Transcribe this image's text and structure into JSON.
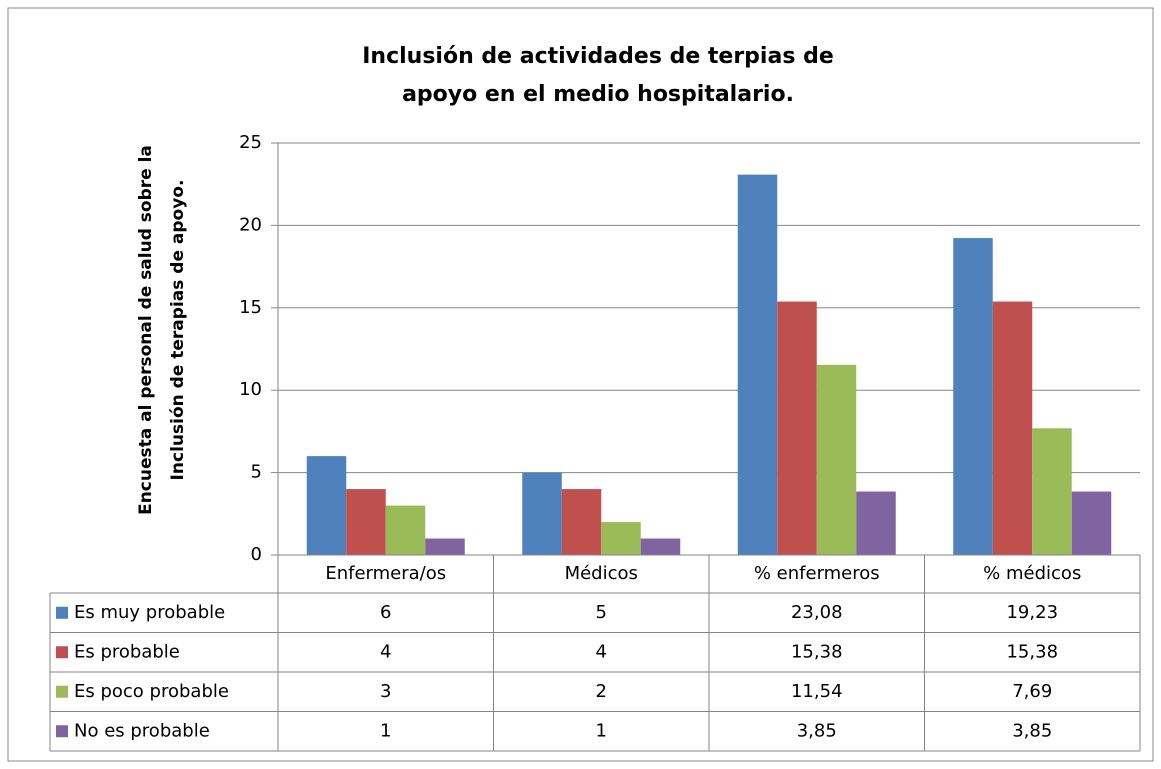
{
  "chart_data": {
    "type": "bar",
    "title": [
      "Inclusión de actividades de terpias de",
      "apoyo en el medio hospitalario."
    ],
    "y_label": [
      "Encuesta al personal de salud sobre la",
      "Inclusión de terapias de apoyo."
    ],
    "categories": [
      "Enfermera/os",
      "Médicos",
      "% enfermeros",
      "% médicos"
    ],
    "series": [
      {
        "name": "Es muy probable",
        "color": "#4f81bd",
        "values": [
          6,
          5,
          23.08,
          19.23
        ],
        "value_labels": [
          "6",
          "5",
          "23,08",
          "19,23"
        ]
      },
      {
        "name": "Es probable",
        "color": "#c0504d",
        "values": [
          4,
          4,
          15.38,
          15.38
        ],
        "value_labels": [
          "4",
          "4",
          "15,38",
          "15,38"
        ]
      },
      {
        "name": "Es poco probable",
        "color": "#9bbb59",
        "values": [
          3,
          2,
          11.54,
          7.69
        ],
        "value_labels": [
          "3",
          "2",
          "11,54",
          "7,69"
        ]
      },
      {
        "name": "No es probable",
        "color": "#8064a2",
        "values": [
          1,
          1,
          3.85,
          3.85
        ],
        "value_labels": [
          "1",
          "1",
          "3,85",
          "3,85"
        ]
      }
    ],
    "ylim": [
      0,
      25
    ],
    "yticks": [
      0,
      5,
      10,
      15,
      20,
      25
    ],
    "grid": true
  }
}
